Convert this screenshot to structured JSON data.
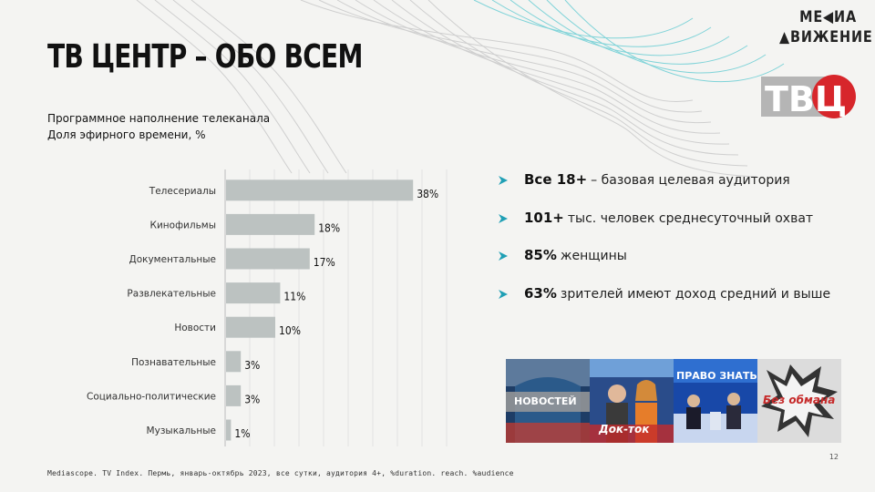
{
  "title": "ТВ ЦЕНТР – ОБО ВСЕМ",
  "brand": {
    "line1": "МЕ◀ИА",
    "line2": "▲ВИЖЕНИЕ"
  },
  "logo_text": "ТВЦ",
  "subtitle": {
    "line1": "Программное наполнение телеканала",
    "line2": "Доля эфирного времени, %"
  },
  "chart_data": {
    "type": "bar",
    "orientation": "horizontal",
    "categories": [
      "Телесериалы",
      "Кинофильмы",
      "Документальные",
      "Развлекательные",
      "Новости",
      "Познавательные",
      "Социально-политические",
      "Музыкальные"
    ],
    "values": [
      38,
      18,
      17,
      11,
      10,
      3,
      3,
      1
    ],
    "data_labels": [
      "38%",
      "18%",
      "17%",
      "11%",
      "10%",
      "3%",
      "3%",
      "1%"
    ],
    "xlim": [
      0,
      45
    ],
    "grid": true,
    "bar_color": "#bcc2c1"
  },
  "bullets": [
    {
      "strong": "Все 18+",
      "text": "– базовая целевая аудитория"
    },
    {
      "strong": "101+",
      "text": "тыс. человек среднесуточный охват"
    },
    {
      "strong": "85%",
      "text": "женщины"
    },
    {
      "strong": "63%",
      "text": "зрителей имеют доход средний и выше"
    }
  ],
  "thumbnails": [
    {
      "label": "НОВОСТЕЙ",
      "icon": "news-thumbnail"
    },
    {
      "label": "Док-ток",
      "icon": "talkshow-thumbnail"
    },
    {
      "label": "ПРАВО ЗНАТЬ!",
      "icon": "pravo-znat-thumbnail"
    },
    {
      "label": "Без обмана",
      "icon": "bez-obmana-thumbnail"
    }
  ],
  "page_number": "12",
  "source": "Mediascope. TV Index. Пермь, январь-октябрь 2023, все сутки, аудитория 4+, %duration. reach. %audience",
  "colors": {
    "accent": "#1f9fb5",
    "logo_red": "#d7262b",
    "logo_gray": "#b5b5b5",
    "bar": "#bcc2c1"
  }
}
